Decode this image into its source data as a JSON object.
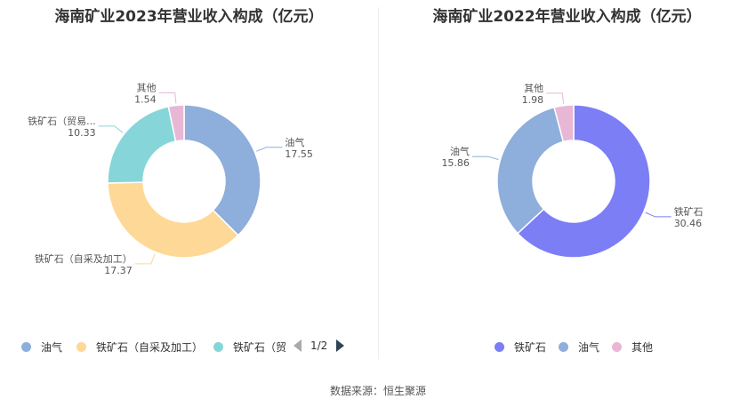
{
  "source": "数据来源：恒生聚源",
  "pager": {
    "text": "1/2"
  },
  "chart_data": [
    {
      "type": "pie",
      "title": "海南矿业2023年营业收入构成（亿元）",
      "slices": [
        {
          "name": "油气",
          "label": "油气",
          "value": 17.55,
          "color": "#8eaedb"
        },
        {
          "name": "铁矿石（自采及加工）",
          "label": "铁矿石（自采及加工）",
          "value": 17.37,
          "color": "#fed896"
        },
        {
          "name": "铁矿石（贸易）",
          "label": "铁矿石（贸易...",
          "value": 10.33,
          "color": "#86d6d9"
        },
        {
          "name": "其他",
          "label": "其他",
          "value": 1.54,
          "color": "#e8b7d5"
        }
      ],
      "legend": [
        "油气",
        "铁矿石（自采及加工）",
        "铁矿石（贸"
      ]
    },
    {
      "type": "pie",
      "title": "海南矿业2022年营业收入构成（亿元）",
      "slices": [
        {
          "name": "铁矿石",
          "label": "铁矿石",
          "value": 30.46,
          "color": "#7b7ef5"
        },
        {
          "name": "油气",
          "label": "油气",
          "value": 15.86,
          "color": "#8eaedb"
        },
        {
          "name": "其他",
          "label": "其他",
          "value": 1.98,
          "color": "#e8b7d5"
        }
      ],
      "legend": [
        "铁矿石",
        "油气",
        "其他"
      ]
    }
  ]
}
